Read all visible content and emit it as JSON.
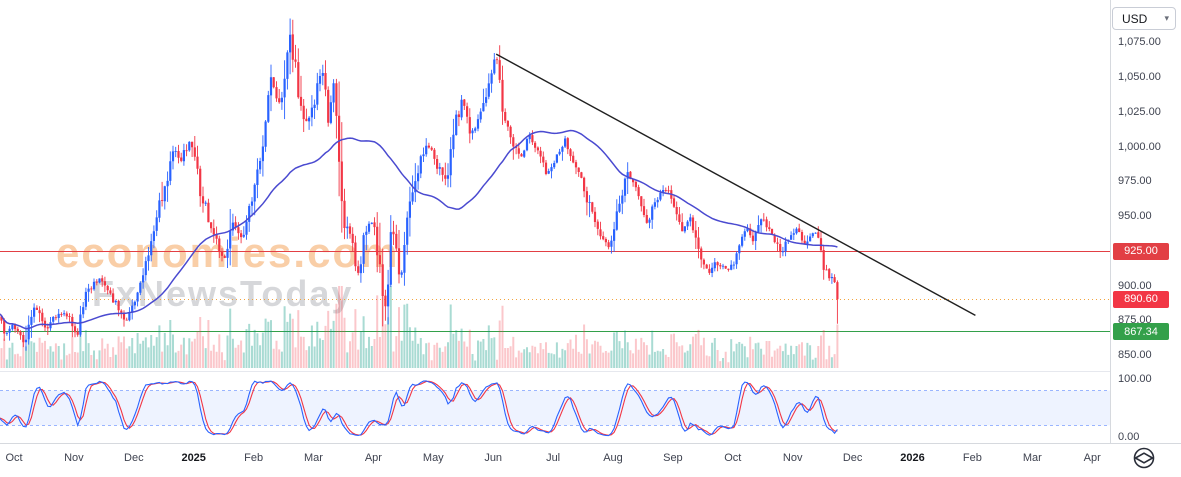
{
  "toolbar": {
    "currency": "USD"
  },
  "watermark": {
    "line1": "economies.com",
    "line2": "FxNewsToday"
  },
  "chart_data": {
    "type": "candlestick",
    "title": "",
    "instrument_currency": "USD",
    "last_price": 890.6,
    "x_axis": {
      "labels": [
        {
          "label": "Oct"
        },
        {
          "label": "Nov"
        },
        {
          "label": "Dec"
        },
        {
          "label": "2025",
          "bold": true
        },
        {
          "label": "Feb"
        },
        {
          "label": "Mar"
        },
        {
          "label": "Apr"
        },
        {
          "label": "May"
        },
        {
          "label": "Jun"
        },
        {
          "label": "Jul"
        },
        {
          "label": "Aug"
        },
        {
          "label": "Sep"
        },
        {
          "label": "Oct"
        },
        {
          "label": "Nov"
        },
        {
          "label": "Dec"
        },
        {
          "label": "2026",
          "bold": true
        },
        {
          "label": "Feb"
        },
        {
          "label": "Mar"
        },
        {
          "label": "Apr"
        }
      ]
    },
    "y_axis": {
      "visible_range": [
        839.7,
        1105.9
      ],
      "ticks": [
        {
          "value": 1075,
          "label": "1,075.00"
        },
        {
          "value": 1050,
          "label": "1,050.00"
        },
        {
          "value": 1025,
          "label": "1,025.00"
        },
        {
          "value": 1000,
          "label": "1,000.00"
        },
        {
          "value": 975,
          "label": "975.00"
        },
        {
          "value": 950,
          "label": "950.00"
        },
        {
          "value": 900,
          "label": "900.00"
        },
        {
          "value": 875,
          "label": "875.00"
        },
        {
          "value": 850,
          "label": "850.00"
        }
      ]
    },
    "price_path": [
      [
        -0.3,
        884
      ],
      [
        -0.15,
        866
      ],
      [
        0,
        872
      ],
      [
        0.15,
        858
      ],
      [
        0.35,
        886
      ],
      [
        0.55,
        870
      ],
      [
        0.75,
        882
      ],
      [
        0.95,
        876
      ],
      [
        1.05,
        862
      ],
      [
        1.2,
        893
      ],
      [
        1.4,
        906
      ],
      [
        1.55,
        896
      ],
      [
        1.7,
        888
      ],
      [
        1.85,
        872
      ],
      [
        2,
        886
      ],
      [
        2.15,
        904
      ],
      [
        2.3,
        938
      ],
      [
        2.5,
        968
      ],
      [
        2.65,
        1002
      ],
      [
        2.78,
        988
      ],
      [
        2.95,
        1008
      ],
      [
        3.1,
        972
      ],
      [
        3.3,
        941
      ],
      [
        3.5,
        918
      ],
      [
        3.65,
        948
      ],
      [
        3.8,
        931
      ],
      [
        3.95,
        958
      ],
      [
        4.1,
        992
      ],
      [
        4.3,
        1046
      ],
      [
        4.45,
        1028
      ],
      [
        4.6,
        1086
      ],
      [
        4.75,
        1042
      ],
      [
        4.88,
        1014
      ],
      [
        5,
        1032
      ],
      [
        5.12,
        1058
      ],
      [
        5.25,
        1022
      ],
      [
        5.35,
        1046
      ],
      [
        5.48,
        953
      ],
      [
        5.62,
        936
      ],
      [
        5.75,
        910
      ],
      [
        5.88,
        944
      ],
      [
        6,
        948
      ],
      [
        6.1,
        914
      ],
      [
        6.2,
        878
      ],
      [
        6.32,
        942
      ],
      [
        6.45,
        900
      ],
      [
        6.6,
        962
      ],
      [
        6.75,
        986
      ],
      [
        6.9,
        1004
      ],
      [
        7.05,
        988
      ],
      [
        7.2,
        974
      ],
      [
        7.35,
        1014
      ],
      [
        7.5,
        1034
      ],
      [
        7.65,
        1008
      ],
      [
        7.8,
        1024
      ],
      [
        7.95,
        1050
      ],
      [
        8.05,
        1066
      ],
      [
        8.18,
        1022
      ],
      [
        8.3,
        1008
      ],
      [
        8.45,
        992
      ],
      [
        8.6,
        1008
      ],
      [
        8.75,
        996
      ],
      [
        8.9,
        982
      ],
      [
        9.05,
        994
      ],
      [
        9.2,
        1004
      ],
      [
        9.35,
        986
      ],
      [
        9.5,
        972
      ],
      [
        9.65,
        952
      ],
      [
        9.8,
        934
      ],
      [
        9.95,
        928
      ],
      [
        10.1,
        958
      ],
      [
        10.25,
        982
      ],
      [
        10.4,
        968
      ],
      [
        10.55,
        946
      ],
      [
        10.7,
        958
      ],
      [
        10.85,
        972
      ],
      [
        11,
        963
      ],
      [
        11.15,
        940
      ],
      [
        11.3,
        948
      ],
      [
        11.45,
        921
      ],
      [
        11.6,
        907
      ],
      [
        11.75,
        918
      ],
      [
        11.9,
        911
      ],
      [
        12.05,
        919
      ],
      [
        12.2,
        944
      ],
      [
        12.35,
        933
      ],
      [
        12.5,
        949
      ],
      [
        12.65,
        938
      ],
      [
        12.8,
        921
      ],
      [
        12.95,
        936
      ],
      [
        13.08,
        943
      ],
      [
        13.2,
        930
      ],
      [
        13.32,
        939
      ],
      [
        13.43,
        936
      ],
      [
        13.52,
        917
      ],
      [
        13.62,
        908
      ],
      [
        13.7,
        902
      ],
      [
        13.76,
        890.6
      ]
    ],
    "levels": [
      {
        "price": 925.0,
        "label": "925.00",
        "color": "#e23f44",
        "badge": "#e23f44",
        "style": "solid"
      },
      {
        "price": 890.6,
        "label": "890.60",
        "color": "#f2a33c",
        "badge": "#f23645",
        "style": "dotted"
      },
      {
        "price": 867.34,
        "label": "867.34",
        "color": "#33a04a",
        "badge": "#33a04a",
        "style": "solid"
      }
    ],
    "trendline": {
      "m1": 8.05,
      "p1": 1067,
      "m2": 16.05,
      "p2": 879,
      "color": "#202020"
    },
    "ma": {
      "type": "sma",
      "period": 45,
      "color": "#4a4ad0"
    },
    "candle_up_color": "#2962ff",
    "candle_down_color": "#f23645",
    "volume": {
      "up_color": "rgba(8,153,129,0.35)",
      "down_color": "rgba(242,54,69,0.28)"
    },
    "oscillator": {
      "name": "Stochastic",
      "k_period": 14,
      "smooth": 3,
      "upper_band": 80,
      "lower_band": 20,
      "range": [
        0,
        100
      ],
      "k_color": "#2962ff",
      "d_color": "#f23645",
      "band_fill": "rgba(41,98,255,0.08)",
      "band_line_color": "rgba(41,98,255,0.45)",
      "ticks": [
        {
          "value": 100,
          "label": "100.00"
        },
        {
          "value": 0,
          "label": "0.00"
        }
      ]
    }
  }
}
